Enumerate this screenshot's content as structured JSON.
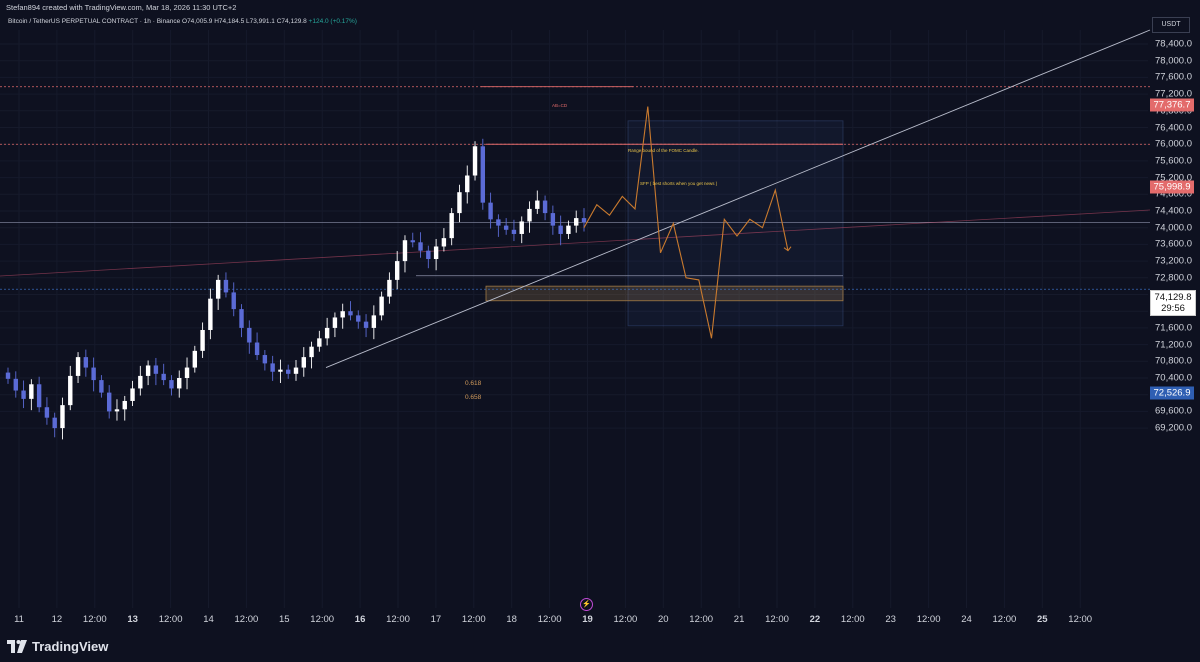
{
  "credit": "Stefan894 created with TradingView.com, Mar 18, 2026 11:30 UTC+2",
  "symbol": {
    "name": "Bitcoin / TetherUS PERPETUAL CONTRACT · 1h · Binance",
    "open": "O74,005.9",
    "high": "H74,184.5",
    "low": "L73,991.1",
    "close": "C74,129.8",
    "change": "+124.0 (+0.17%)"
  },
  "currency": "USDT",
  "brand": "TradingView",
  "colors": {
    "background": "#0e1120",
    "up": "#ffffff",
    "down": "#5b6bd6",
    "projection": "#c97a2e",
    "trendline": "#b8bccb",
    "red_level": "#e36b6b",
    "blue_level": "#3d79d6"
  },
  "annotations": {
    "abcd": "AB=CD",
    "range": "Range bound of the FOMC Candle.",
    "sfp": "SFP ( best shorts when you get news )",
    "fib_618": "0.618",
    "fib_658": "0.658"
  },
  "price_badges": {
    "red_top": "77,376.7",
    "red_mid": "75,998.9",
    "current": "74,129.8",
    "countdown": "29:56",
    "blue": "72,526.9"
  },
  "chart_data": {
    "type": "candlestick",
    "y_axis": {
      "ticks": [
        "78,400.0",
        "78,000.0",
        "77,600.0",
        "77,200.0",
        "76,800.0",
        "76,400.0",
        "76,000.0",
        "75,600.0",
        "75,200.0",
        "74,800.0",
        "74,400.0",
        "74,000.0",
        "73,600.0",
        "73,200.0",
        "72,800.0",
        "72,400.0",
        "72,000.0",
        "71,600.0",
        "71,200.0",
        "70,800.0",
        "70,400.0",
        "70,000.0",
        "69,600.0",
        "69,200.0"
      ],
      "ylim": [
        69000,
        78600
      ]
    },
    "x_axis": {
      "ticks": [
        "11",
        "12",
        "12:00",
        "13",
        "12:00",
        "14",
        "12:00",
        "15",
        "12:00",
        "16",
        "12:00",
        "17",
        "12:00",
        "18",
        "12:00",
        "19",
        "12:00",
        "20",
        "12:00",
        "21",
        "12:00",
        "22",
        "12:00",
        "23",
        "12:00",
        "24",
        "12:00",
        "25",
        "12:00"
      ]
    },
    "candle_closes": [
      70380,
      70100,
      69900,
      70250,
      69700,
      69450,
      69200,
      69750,
      70450,
      70900,
      70650,
      70350,
      70050,
      69600,
      69650,
      69850,
      70150,
      70450,
      70700,
      70500,
      70350,
      70150,
      70400,
      70650,
      71050,
      71550,
      72300,
      72750,
      72450,
      72050,
      71600,
      71250,
      70950,
      70750,
      70550,
      70600,
      70500,
      70650,
      70900,
      71150,
      71350,
      71600,
      71850,
      72000,
      71900,
      71750,
      71600,
      71900,
      72350,
      72750,
      73200,
      73700,
      73650,
      73450,
      73250,
      73550,
      73750,
      74350,
      74850,
      75250,
      75950,
      74600,
      74200,
      74050,
      73950,
      73850,
      74150,
      74450,
      74650,
      74350,
      74050,
      73850,
      74050,
      74230,
      74130
    ],
    "levels": {
      "red_top": 77376.7,
      "red_mid": 75998.9,
      "current": 74129.8,
      "blue": 72526.9
    },
    "projection_path": [
      74000,
      74550,
      74300,
      74750,
      74450,
      76900,
      73400,
      74100,
      72800,
      72750,
      71350,
      74200,
      73800,
      74200,
      74000,
      74900,
      73450
    ],
    "trendline": {
      "from": [
        0,
        70650
      ],
      "to": [
        1,
        78400
      ]
    }
  }
}
